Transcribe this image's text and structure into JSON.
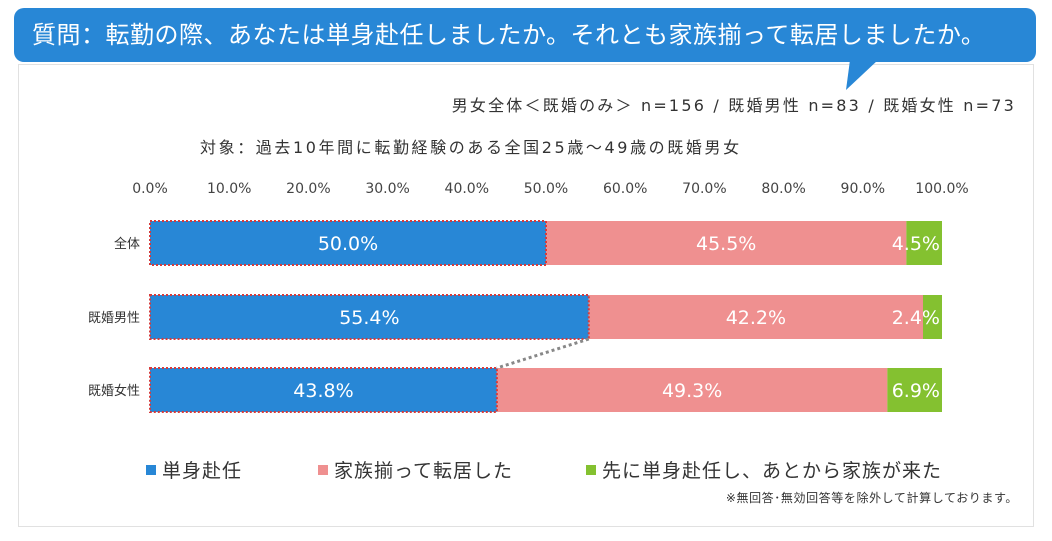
{
  "header": {
    "question": "質問：転勤の際、あなたは単身赴任しましたか。それとも家族揃って転居しましたか。"
  },
  "subtitle": {
    "sample": "男女全体＜既婚のみ＞ n=156 / 既婚男性 n=83 / 既婚女性 n=73",
    "target": "対象：過去10年間に転勤経験のある全国25歳～49歳の既婚男女"
  },
  "note": "※無回答･無効回答等を除外して計算しております。",
  "colors": {
    "header_bg": "#2887d6",
    "series1": "#2887d6",
    "series2": "#ef9090",
    "series3": "#84c130",
    "highlight": "#d63b3b",
    "connector": "#888888"
  },
  "chart_data": {
    "type": "bar",
    "orientation": "horizontal",
    "stacked": true,
    "percent": true,
    "categories": [
      "全体",
      "既婚男性",
      "既婚女性"
    ],
    "series": [
      {
        "name": "単身赴任",
        "values": [
          50.0,
          55.4,
          43.8
        ],
        "labels": [
          "50.0%",
          "55.4%",
          "43.8%"
        ]
      },
      {
        "name": "家族揃って転居した",
        "values": [
          45.5,
          42.2,
          49.3
        ],
        "labels": [
          "45.5%",
          "42.2%",
          "49.3%"
        ]
      },
      {
        "name": "先に単身赴任し、あとから家族が来た",
        "values": [
          4.5,
          2.4,
          6.9
        ],
        "labels": [
          "4.5%",
          "2.4%",
          "6.9%"
        ]
      }
    ],
    "xlim": [
      0,
      100
    ],
    "xticks": [
      0,
      10,
      20,
      30,
      40,
      50,
      60,
      70,
      80,
      90,
      100
    ],
    "xtick_labels": [
      "0.0%",
      "10.0%",
      "20.0%",
      "30.0%",
      "40.0%",
      "50.0%",
      "60.0%",
      "70.0%",
      "80.0%",
      "90.0%",
      "100.0%"
    ],
    "legend": "bottom",
    "grid": false
  }
}
